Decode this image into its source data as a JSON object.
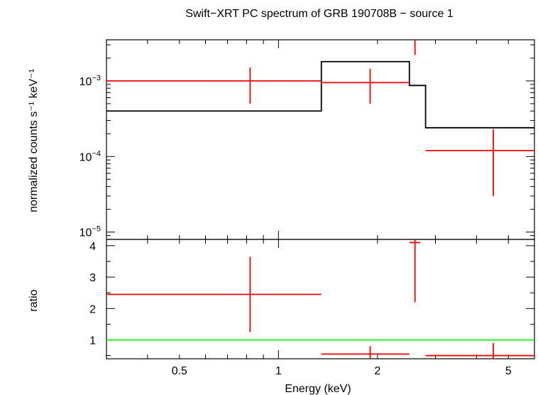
{
  "chart_data": [
    {
      "type": "line",
      "panel": "spectrum",
      "title": "Swift−XRT PC spectrum of GRB 190708B − source 1",
      "xlabel": "Energy (keV)",
      "ylabel": "normalized counts s⁻¹ keV⁻¹",
      "xscale": "log",
      "yscale": "log",
      "xlim": [
        0.3,
        6.0
      ],
      "ylim": [
        8e-06,
        0.0035
      ],
      "yticks": [
        {
          "value": 0.001,
          "base": "10",
          "exp": "−3"
        },
        {
          "value": 0.0001,
          "base": "10",
          "exp": "−4"
        },
        {
          "value": 1e-05,
          "base": "10",
          "exp": "−5"
        }
      ],
      "model_step": {
        "name": "model",
        "color": "#000000",
        "bins": [
          {
            "x0": 0.3,
            "x1": 1.35,
            "y": 0.0004
          },
          {
            "x0": 1.35,
            "x1": 2.5,
            "y": 0.0018
          },
          {
            "x0": 2.5,
            "x1": 2.8,
            "y": 0.00087
          },
          {
            "x0": 2.8,
            "x1": 6.0,
            "y": 0.00024
          }
        ]
      },
      "data_points": {
        "name": "data",
        "color": "#ff0000",
        "points": [
          {
            "x": 0.82,
            "xlo": 0.3,
            "xhi": 1.35,
            "y": 0.001,
            "ylo": 0.0005,
            "yhi": 0.0015
          },
          {
            "x": 1.9,
            "xlo": 1.35,
            "xhi": 2.5,
            "y": 0.00095,
            "ylo": 0.0005,
            "yhi": 0.00145
          },
          {
            "x": 2.6,
            "xlo": 2.6,
            "xhi": 2.6,
            "y": 0.0035,
            "ylo": 0.0022,
            "yhi": 0.0035
          },
          {
            "x": 4.5,
            "xlo": 2.8,
            "xhi": 6.0,
            "y": 0.00012,
            "ylo": 3e-05,
            "yhi": 0.00023
          }
        ]
      }
    },
    {
      "type": "scatter",
      "panel": "ratio",
      "xlabel": "Energy (keV)",
      "ylabel": "ratio",
      "xscale": "log",
      "yscale": "linear",
      "xlim": [
        0.3,
        6.0
      ],
      "ylim": [
        0.4,
        4.2
      ],
      "xticks": [
        {
          "value": 0.5,
          "label": "0.5"
        },
        {
          "value": 1,
          "label": "1"
        },
        {
          "value": 2,
          "label": "2"
        },
        {
          "value": 5,
          "label": "5"
        }
      ],
      "yticks": [
        {
          "value": 1,
          "label": "1"
        },
        {
          "value": 2,
          "label": "2"
        },
        {
          "value": 3,
          "label": "3"
        },
        {
          "value": 4,
          "label": "4"
        }
      ],
      "reference_line": {
        "y": 1,
        "color": "#00ff00"
      },
      "data_points": {
        "color": "#ff0000",
        "points": [
          {
            "x": 0.82,
            "xlo": 0.3,
            "xhi": 1.35,
            "y": 2.45,
            "ylo": 1.25,
            "yhi": 3.65
          },
          {
            "x": 1.9,
            "xlo": 1.35,
            "xhi": 2.5,
            "y": 0.55,
            "ylo": 0.35,
            "yhi": 0.8
          },
          {
            "x": 2.6,
            "xlo": 2.5,
            "xhi": 2.7,
            "y": 4.1,
            "ylo": 2.2,
            "yhi": 4.2
          },
          {
            "x": 4.5,
            "xlo": 2.8,
            "xhi": 6.0,
            "y": 0.5,
            "ylo": 0.35,
            "yhi": 0.9
          }
        ]
      }
    }
  ]
}
